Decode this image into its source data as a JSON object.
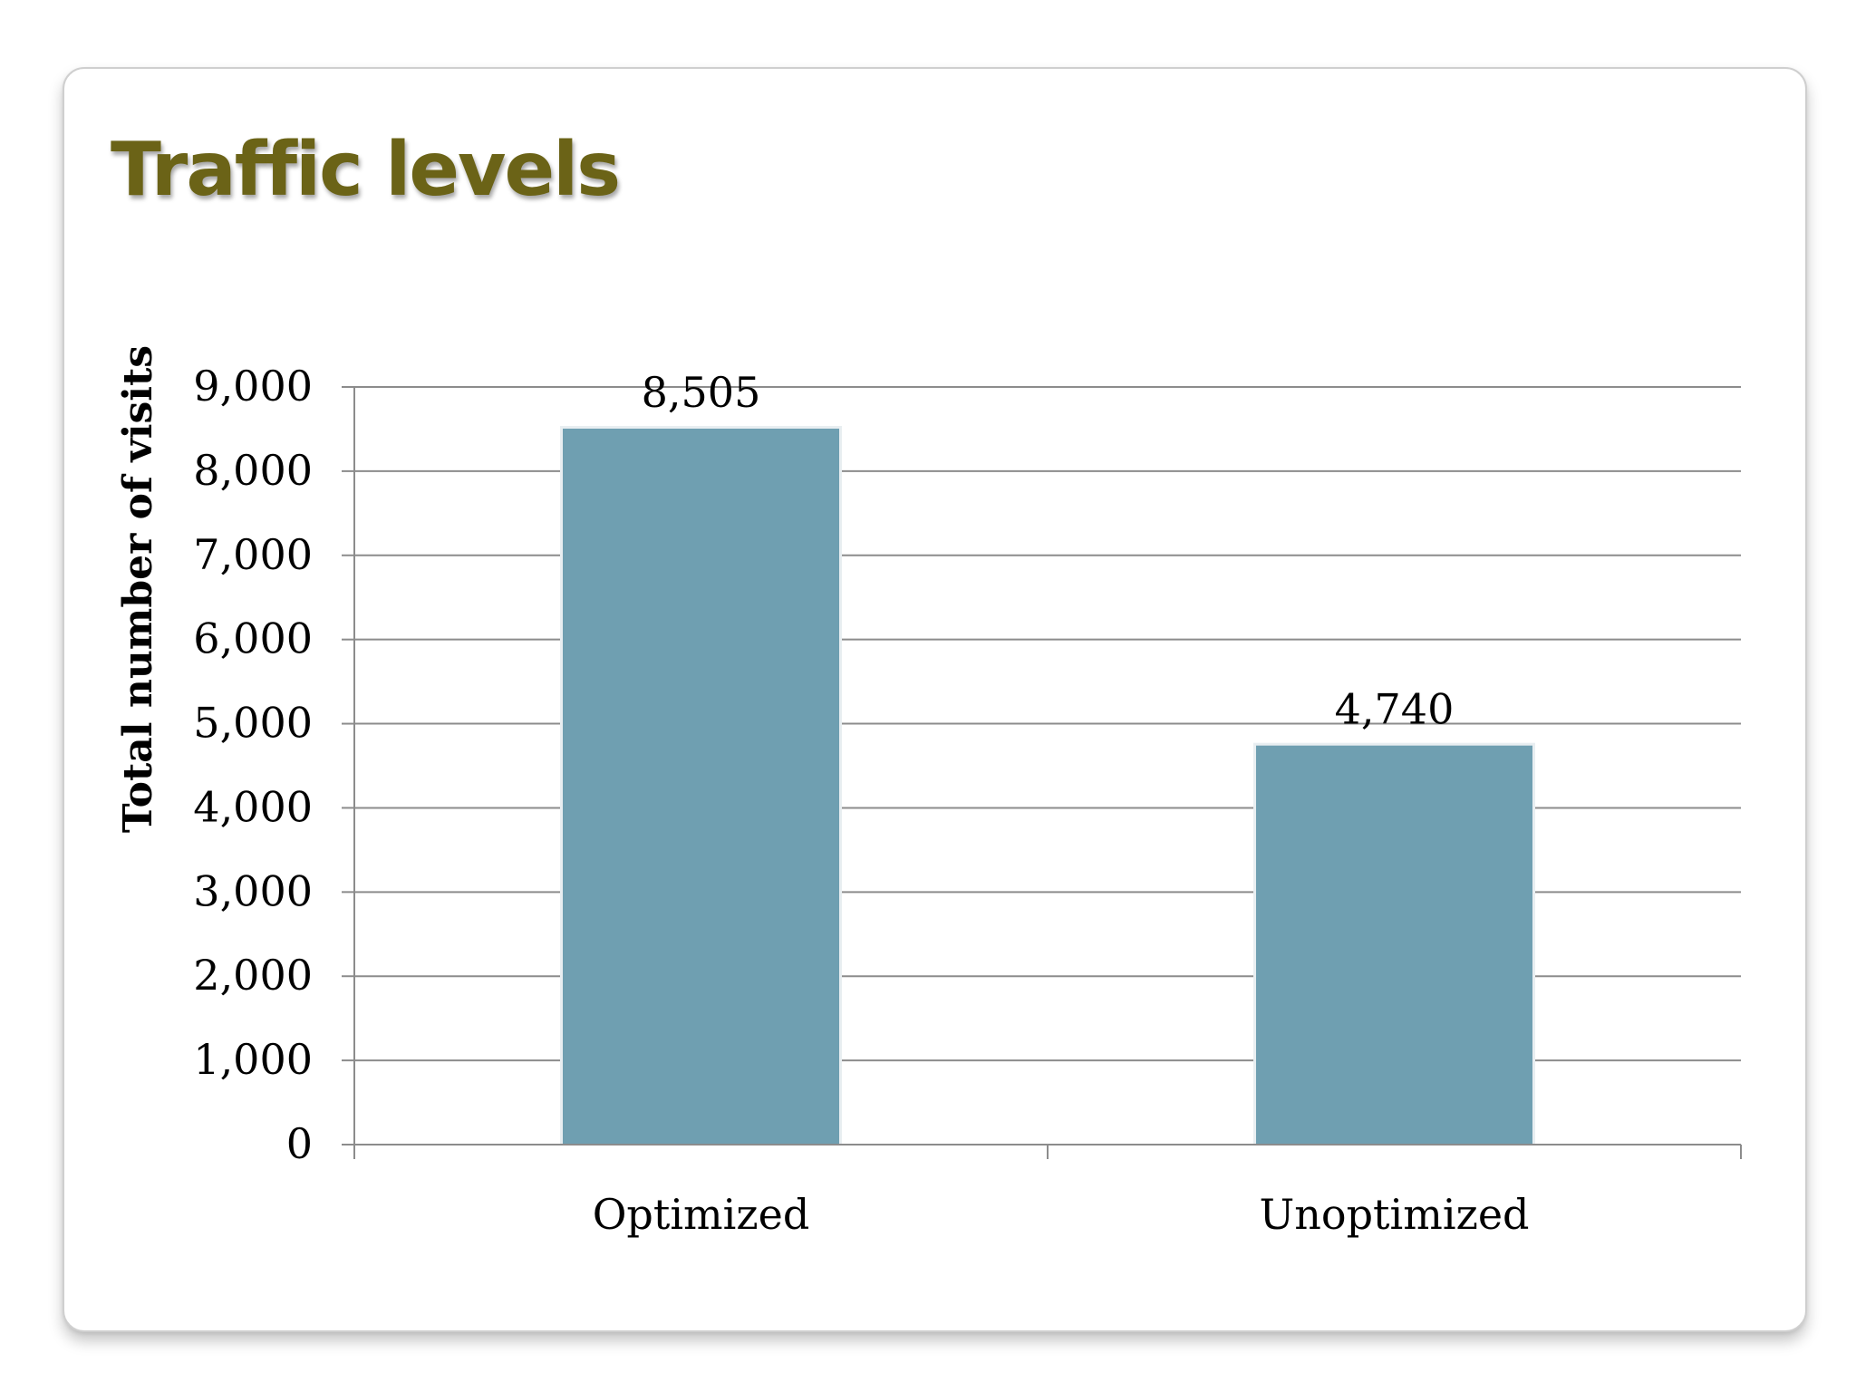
{
  "slide": {
    "title": "Traffic levels"
  },
  "colors": {
    "title": "#6b6317",
    "bar": "#6f9fb1",
    "grid": "#8c8c8c"
  },
  "chart_data": {
    "type": "bar",
    "title": "",
    "xlabel": "",
    "ylabel": "Total number of visits",
    "categories": [
      "Optimized",
      "Unoptimized"
    ],
    "values": [
      8505,
      4740
    ],
    "data_labels": [
      "8,505",
      "4,740"
    ],
    "ylim": [
      0,
      9000
    ],
    "yticks": [
      0,
      1000,
      2000,
      3000,
      4000,
      5000,
      6000,
      7000,
      8000,
      9000
    ],
    "ytick_labels": [
      "0",
      "1,000",
      "2,000",
      "3,000",
      "4,000",
      "5,000",
      "6,000",
      "7,000",
      "8,000",
      "9,000"
    ],
    "grid": true,
    "legend": "none"
  }
}
